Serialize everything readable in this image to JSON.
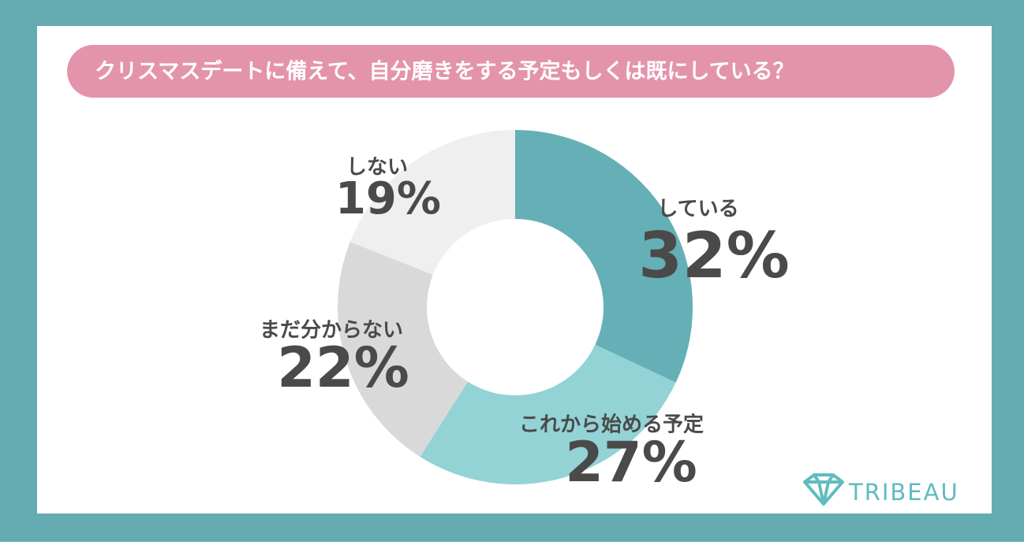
{
  "chart_data": {
    "type": "donut",
    "title": "クリスマスデートに備えて、自分磨きをする予定もしくは既にしている？",
    "categories": [
      "している",
      "これから始める予定",
      "まだ分からない",
      "しない"
    ],
    "values": [
      32,
      27,
      22,
      19
    ],
    "value_labels": [
      "32%",
      "27%",
      "22%",
      "19%"
    ],
    "colors": [
      "#65b0b6",
      "#93d3d5",
      "#d9d9d9",
      "#efefef"
    ]
  },
  "brand": "TRIBEAU"
}
